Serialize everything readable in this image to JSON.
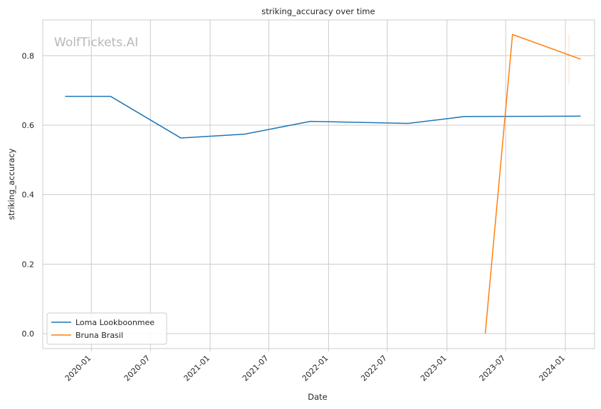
{
  "chart_data": {
    "type": "line",
    "title": "striking_accuracy over time",
    "xlabel": "Date",
    "ylabel": "striking_accuracy",
    "watermark": "WolfTickets.AI",
    "x_ticks": [
      "2020-01",
      "2020-07",
      "2021-01",
      "2021-07",
      "2022-01",
      "2022-07",
      "2023-01",
      "2023-07",
      "2024-01"
    ],
    "y_ticks": [
      0.0,
      0.2,
      0.4,
      0.6,
      0.8
    ],
    "xlim": [
      "2019-08-04",
      "2024-03-31"
    ],
    "ylim": [
      -0.043,
      0.903
    ],
    "grid": true,
    "legend_position": "lower-left",
    "series": [
      {
        "name": "Loma Lookboonmee",
        "color": "#1f77b4",
        "points": [
          {
            "x": "2019-10-12",
            "y": 0.683
          },
          {
            "x": "2020-02-29",
            "y": 0.683
          },
          {
            "x": "2020-10-03",
            "y": 0.563
          },
          {
            "x": "2021-04-17",
            "y": 0.574
          },
          {
            "x": "2021-11-06",
            "y": 0.611
          },
          {
            "x": "2022-09-03",
            "y": 0.605
          },
          {
            "x": "2023-02-25",
            "y": 0.625
          },
          {
            "x": "2024-02-17",
            "y": 0.626
          }
        ]
      },
      {
        "name": "Bruna Brasil",
        "color": "#ff7f0e",
        "points": [
          {
            "x": "2023-04-29",
            "y": 0.0
          },
          {
            "x": "2023-07-22",
            "y": 0.861
          },
          {
            "x": "2024-02-17",
            "y": 0.79
          }
        ]
      }
    ]
  }
}
